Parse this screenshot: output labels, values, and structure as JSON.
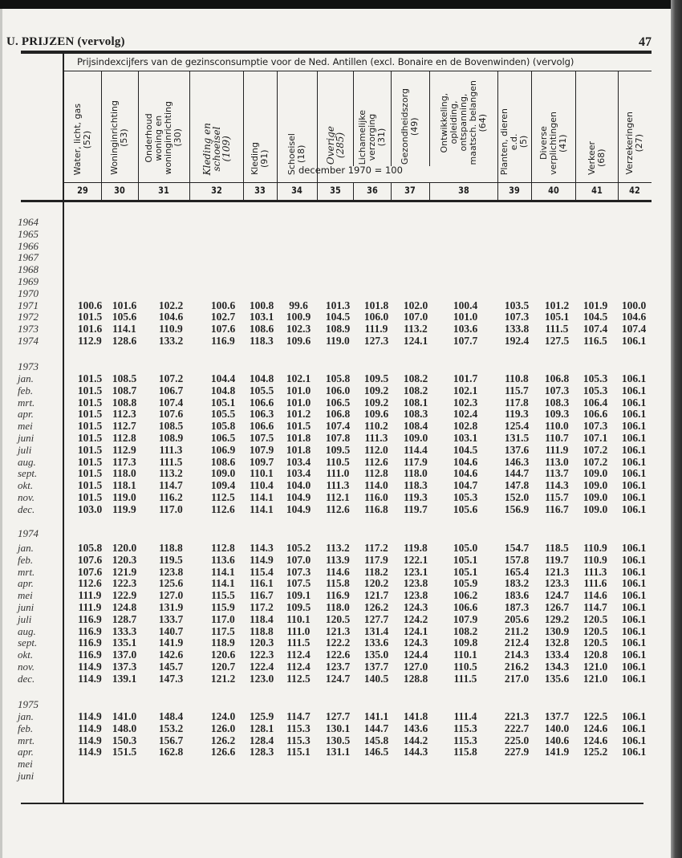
{
  "page": {
    "running_title": "U. PRIJZEN (vervolg)",
    "page_number": "47"
  },
  "table": {
    "title": "Prijsindexcijfers van de gezinsconsumptie voor de Ned. Antillen (excl. Bonaire en de Bovenwinden) (vervolg)",
    "basis": "december 1970 = 100",
    "columns": [
      {
        "number": "29",
        "label": [
          "Water, licht, gas",
          "(52)"
        ]
      },
      {
        "number": "30",
        "label": [
          "Woninginrichting",
          "(53)"
        ]
      },
      {
        "number": "31",
        "label": [
          "Onderhoud",
          "woning en",
          "woninginrichting",
          "(30)"
        ]
      },
      {
        "number": "32",
        "label": [
          "Kleding en",
          "schoeisel",
          "(109)"
        ]
      },
      {
        "number": "33",
        "label": [
          "Kleding",
          "(91)"
        ]
      },
      {
        "number": "34",
        "label": [
          "Schoeisel",
          "(18)"
        ]
      },
      {
        "number": "35",
        "label": [
          "Overige",
          "(285)"
        ]
      },
      {
        "number": "36",
        "label": [
          "Lichamelijke",
          "verzorging",
          "(31)"
        ]
      },
      {
        "number": "37",
        "label": [
          "Gezondheidszorg",
          "(49)"
        ]
      },
      {
        "number": "38",
        "label": [
          "Ontwikkeling,",
          "opleiding,",
          "ontspanning,",
          "maatsch. belangen",
          "(64)"
        ]
      },
      {
        "number": "39",
        "label": [
          "Planten, dieren",
          "e.d.",
          "(5)"
        ]
      },
      {
        "number": "40",
        "label": [
          "Diverse",
          "verplichtingen",
          "(41)"
        ]
      },
      {
        "number": "41",
        "label": [
          "Verkeer",
          "(68)"
        ]
      },
      {
        "number": "42",
        "label": [
          "Verzekeringen",
          "(27)"
        ]
      }
    ],
    "sections": [
      {
        "heading": "",
        "rows": [
          {
            "label": "1964",
            "values": []
          },
          {
            "label": "1965",
            "values": []
          },
          {
            "label": "1966",
            "values": []
          },
          {
            "label": "1967",
            "values": []
          },
          {
            "label": "1968",
            "values": []
          },
          {
            "label": "1969",
            "values": []
          },
          {
            "label": "1970",
            "values": []
          },
          {
            "label": "1971",
            "values": [
              "100.6",
              "101.6",
              "102.2",
              "100.6",
              "100.8",
              "99.6",
              "101.3",
              "101.8",
              "102.0",
              "100.4",
              "103.5",
              "101.2",
              "101.9",
              "100.0"
            ]
          },
          {
            "label": "1972",
            "values": [
              "101.5",
              "105.6",
              "104.6",
              "102.7",
              "103.1",
              "100.9",
              "104.5",
              "106.0",
              "107.0",
              "101.0",
              "107.3",
              "105.1",
              "104.5",
              "104.6"
            ]
          },
          {
            "label": "1973",
            "values": [
              "101.6",
              "114.1",
              "110.9",
              "107.6",
              "108.6",
              "102.3",
              "108.9",
              "111.9",
              "113.2",
              "103.6",
              "133.8",
              "111.5",
              "107.4",
              "107.4"
            ]
          },
          {
            "label": "1974",
            "values": [
              "112.9",
              "128.6",
              "133.2",
              "116.9",
              "118.3",
              "109.6",
              "119.0",
              "127.3",
              "124.1",
              "107.7",
              "192.4",
              "127.5",
              "116.5",
              "106.1"
            ]
          }
        ]
      },
      {
        "heading": "1973",
        "rows": [
          {
            "label": "jan.",
            "values": [
              "101.5",
              "108.5",
              "107.2",
              "104.4",
              "104.8",
              "102.1",
              "105.8",
              "109.5",
              "108.2",
              "101.7",
              "110.8",
              "106.8",
              "105.3",
              "106.1"
            ]
          },
          {
            "label": "feb.",
            "values": [
              "101.5",
              "108.7",
              "106.7",
              "104.8",
              "105.5",
              "101.0",
              "106.0",
              "109.2",
              "108.2",
              "102.1",
              "115.7",
              "107.3",
              "105.3",
              "106.1"
            ]
          },
          {
            "label": "mrt.",
            "values": [
              "101.5",
              "108.8",
              "107.4",
              "105.1",
              "106.6",
              "101.0",
              "106.5",
              "109.2",
              "108.1",
              "102.3",
              "117.8",
              "108.3",
              "106.4",
              "106.1"
            ]
          },
          {
            "label": "apr.",
            "values": [
              "101.5",
              "112.3",
              "107.6",
              "105.5",
              "106.3",
              "101.2",
              "106.8",
              "109.6",
              "108.3",
              "102.4",
              "119.3",
              "109.3",
              "106.6",
              "106.1"
            ]
          },
          {
            "label": "mei",
            "values": [
              "101.5",
              "112.7",
              "108.5",
              "105.8",
              "106.6",
              "101.5",
              "107.4",
              "110.2",
              "108.4",
              "102.8",
              "125.4",
              "110.0",
              "107.3",
              "106.1"
            ]
          },
          {
            "label": "juni",
            "values": [
              "101.5",
              "112.8",
              "108.9",
              "106.5",
              "107.5",
              "101.8",
              "107.8",
              "111.3",
              "109.0",
              "103.1",
              "131.5",
              "110.7",
              "107.1",
              "106.1"
            ]
          },
          {
            "label": "juli",
            "values": [
              "101.5",
              "112.9",
              "111.3",
              "106.9",
              "107.9",
              "101.8",
              "109.5",
              "112.0",
              "114.4",
              "104.5",
              "137.6",
              "111.9",
              "107.2",
              "106.1"
            ]
          },
          {
            "label": "aug.",
            "values": [
              "101.5",
              "117.3",
              "111.5",
              "108.6",
              "109.7",
              "103.4",
              "110.5",
              "112.6",
              "117.9",
              "104.6",
              "146.3",
              "113.0",
              "107.2",
              "106.1"
            ]
          },
          {
            "label": "sept.",
            "values": [
              "101.5",
              "118.0",
              "113.2",
              "109.0",
              "110.1",
              "103.4",
              "111.0",
              "112.8",
              "118.0",
              "104.6",
              "144.7",
              "113.7",
              "109.0",
              "106.1"
            ]
          },
          {
            "label": "okt.",
            "values": [
              "101.5",
              "118.1",
              "114.7",
              "109.4",
              "110.4",
              "104.0",
              "111.3",
              "114.0",
              "118.3",
              "104.7",
              "147.8",
              "114.3",
              "109.0",
              "106.1"
            ]
          },
          {
            "label": "nov.",
            "values": [
              "101.5",
              "119.0",
              "116.2",
              "112.5",
              "114.1",
              "104.9",
              "112.1",
              "116.0",
              "119.3",
              "105.3",
              "152.0",
              "115.7",
              "109.0",
              "106.1"
            ]
          },
          {
            "label": "dec.",
            "values": [
              "103.0",
              "119.9",
              "117.0",
              "112.6",
              "114.1",
              "104.9",
              "112.6",
              "116.8",
              "119.7",
              "105.6",
              "156.9",
              "116.7",
              "109.0",
              "106.1"
            ]
          }
        ]
      },
      {
        "heading": "1974",
        "rows": [
          {
            "label": "jan.",
            "values": [
              "105.8",
              "120.0",
              "118.8",
              "112.8",
              "114.3",
              "105.2",
              "113.2",
              "117.2",
              "119.8",
              "105.0",
              "154.7",
              "118.5",
              "110.9",
              "106.1"
            ]
          },
          {
            "label": "feb.",
            "values": [
              "107.6",
              "120.3",
              "119.5",
              "113.6",
              "114.9",
              "107.0",
              "113.9",
              "117.9",
              "122.1",
              "105.1",
              "157.8",
              "119.7",
              "110.9",
              "106.1"
            ]
          },
          {
            "label": "mrt.",
            "values": [
              "107.6",
              "121.9",
              "123.8",
              "114.1",
              "115.4",
              "107.3",
              "114.6",
              "118.2",
              "123.1",
              "105.1",
              "165.4",
              "121.3",
              "111.3",
              "106.1"
            ]
          },
          {
            "label": "apr.",
            "values": [
              "112.6",
              "122.3",
              "125.6",
              "114.1",
              "116.1",
              "107.5",
              "115.8",
              "120.2",
              "123.8",
              "105.9",
              "183.2",
              "123.3",
              "111.6",
              "106.1"
            ]
          },
          {
            "label": "mei",
            "values": [
              "111.9",
              "122.9",
              "127.0",
              "115.5",
              "116.7",
              "109.1",
              "116.9",
              "121.7",
              "123.8",
              "106.2",
              "183.6",
              "124.7",
              "114.6",
              "106.1"
            ]
          },
          {
            "label": "juni",
            "values": [
              "111.9",
              "124.8",
              "131.9",
              "115.9",
              "117.2",
              "109.5",
              "118.0",
              "126.2",
              "124.3",
              "106.6",
              "187.3",
              "126.7",
              "114.7",
              "106.1"
            ]
          },
          {
            "label": "juli",
            "values": [
              "116.9",
              "128.7",
              "133.7",
              "117.0",
              "118.4",
              "110.1",
              "120.5",
              "127.7",
              "124.2",
              "107.9",
              "205.6",
              "129.2",
              "120.5",
              "106.1"
            ]
          },
          {
            "label": "aug.",
            "values": [
              "116.9",
              "133.3",
              "140.7",
              "117.5",
              "118.8",
              "111.0",
              "121.3",
              "131.4",
              "124.1",
              "108.2",
              "211.2",
              "130.9",
              "120.5",
              "106.1"
            ]
          },
          {
            "label": "sept.",
            "values": [
              "116.9",
              "135.1",
              "141.9",
              "118.9",
              "120.3",
              "111.5",
              "122.2",
              "133.6",
              "124.3",
              "109.8",
              "212.4",
              "132.8",
              "120.5",
              "106.1"
            ]
          },
          {
            "label": "okt.",
            "values": [
              "116.9",
              "137.0",
              "142.6",
              "120.6",
              "122.3",
              "112.4",
              "122.6",
              "135.0",
              "124.4",
              "110.1",
              "214.3",
              "133.4",
              "120.8",
              "106.1"
            ]
          },
          {
            "label": "nov.",
            "values": [
              "114.9",
              "137.3",
              "145.7",
              "120.7",
              "122.4",
              "112.4",
              "123.7",
              "137.7",
              "127.0",
              "110.5",
              "216.2",
              "134.3",
              "121.0",
              "106.1"
            ]
          },
          {
            "label": "dec.",
            "values": [
              "114.9",
              "139.1",
              "147.3",
              "121.2",
              "123.0",
              "112.5",
              "124.7",
              "140.5",
              "128.8",
              "111.5",
              "217.0",
              "135.6",
              "121.0",
              "106.1"
            ]
          }
        ]
      },
      {
        "heading": "1975",
        "rows": [
          {
            "label": "jan.",
            "values": [
              "114.9",
              "141.0",
              "148.4",
              "124.0",
              "125.9",
              "114.7",
              "127.7",
              "141.1",
              "141.8",
              "111.4",
              "221.3",
              "137.7",
              "122.5",
              "106.1"
            ]
          },
          {
            "label": "feb.",
            "values": [
              "114.9",
              "148.0",
              "153.2",
              "126.0",
              "128.1",
              "115.3",
              "130.1",
              "144.7",
              "143.6",
              "115.3",
              "222.7",
              "140.0",
              "124.6",
              "106.1"
            ]
          },
          {
            "label": "mrt.",
            "values": [
              "114.9",
              "150.3",
              "156.7",
              "126.2",
              "128.4",
              "115.3",
              "130.5",
              "145.8",
              "144.2",
              "115.3",
              "225.0",
              "140.6",
              "124.6",
              "106.1"
            ]
          },
          {
            "label": "apr.",
            "values": [
              "114.9",
              "151.5",
              "162.8",
              "126.6",
              "128.3",
              "115.1",
              "131.1",
              "146.5",
              "144.3",
              "115.8",
              "227.9",
              "141.9",
              "125.2",
              "106.1"
            ]
          },
          {
            "label": "mei",
            "values": []
          },
          {
            "label": "juni",
            "values": []
          }
        ]
      }
    ]
  }
}
